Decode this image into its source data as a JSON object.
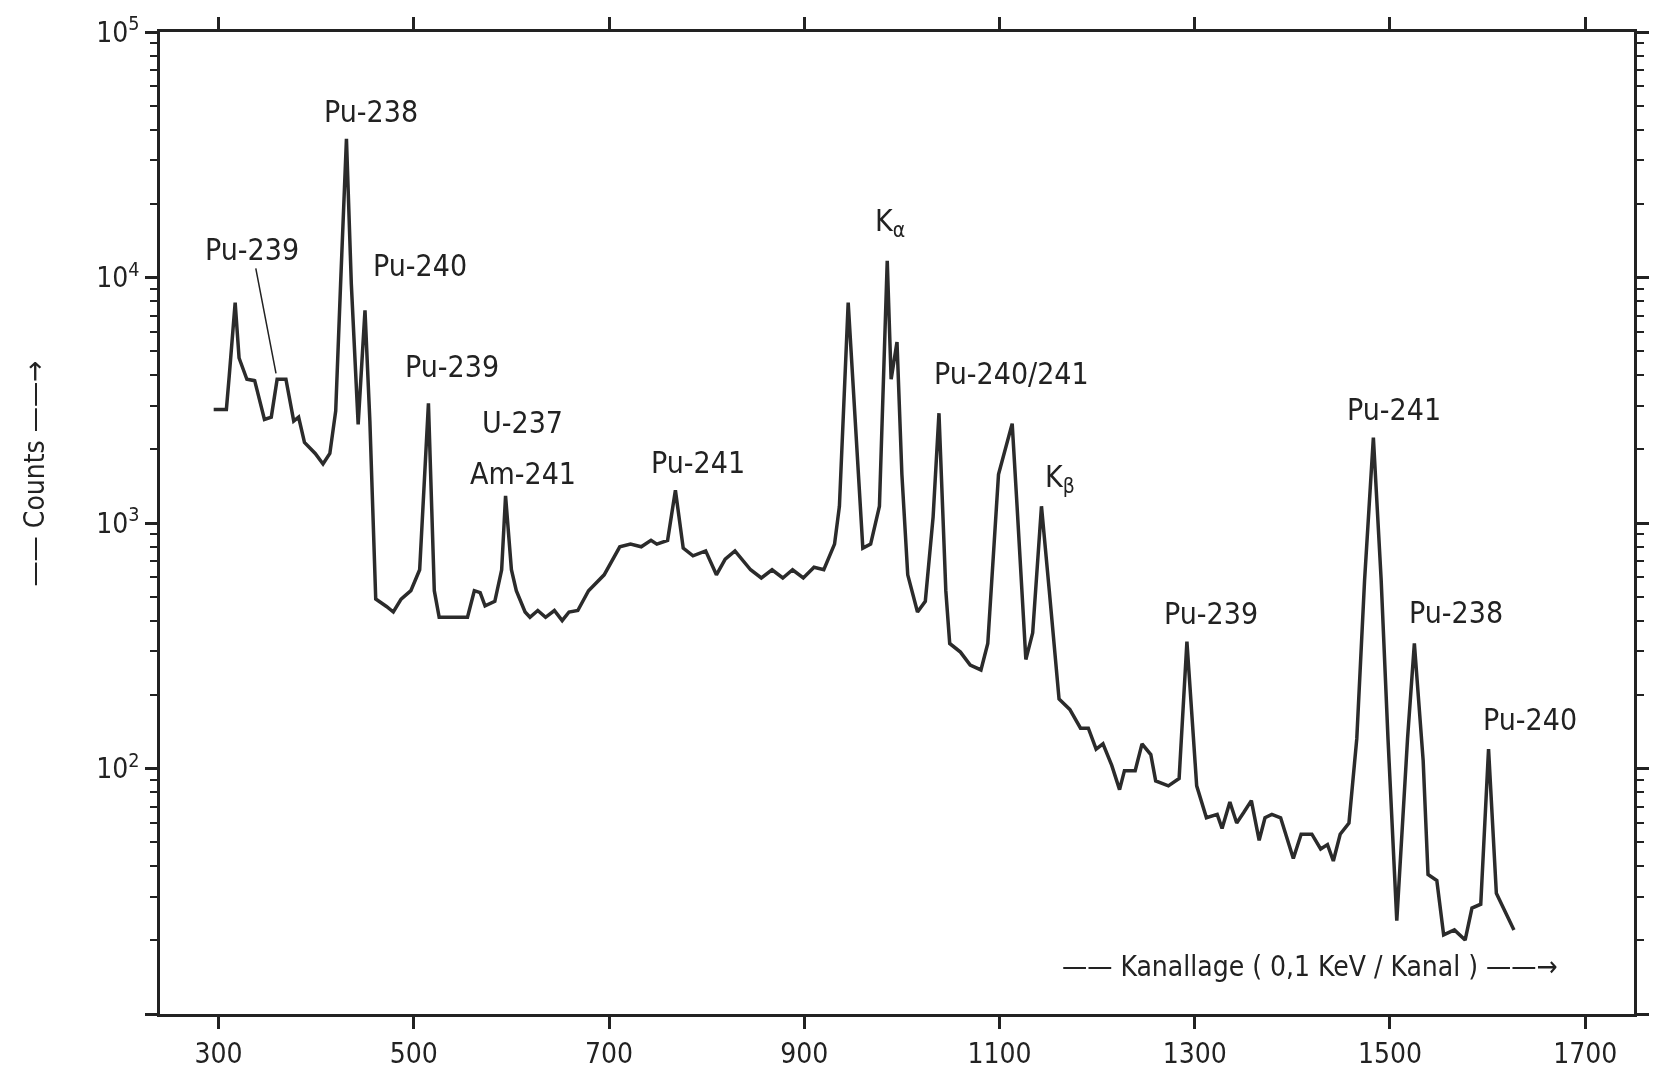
{
  "chart_data": {
    "type": "line",
    "xlabel": "—— Kanallage ( 0,1 KeV / Kanal ) ——→",
    "ylabel": "—— Counts ——→",
    "log": "y",
    "marker": "none",
    "line_style": "solid",
    "xlim": [
      240,
      1750
    ],
    "xticks": [
      300,
      500,
      700,
      900,
      1100,
      1300,
      1500,
      1700
    ],
    "ylim": [
      10,
      100000
    ],
    "yticks": [
      {
        "value": 10,
        "label": null
      },
      {
        "value": 100,
        "label": "10$^{2}$"
      },
      {
        "value": 1000,
        "label": "10$^{3}$"
      },
      {
        "value": 10000,
        "label": "10$^{4}$"
      },
      {
        "value": 100000,
        "label": "10$^{5}$"
      }
    ],
    "series": [
      {
        "color": "#2b2b2b",
        "x": [
          295,
          308,
          311,
          317,
          321,
          329,
          337,
          347,
          354,
          360,
          369,
          377,
          382,
          388,
          399,
          407,
          414,
          420,
          425,
          431,
          436,
          443,
          450,
          455,
          461,
          472,
          479,
          487,
          497,
          506,
          515,
          521,
          526,
          555,
          562,
          568,
          573,
          583,
          590,
          594,
          600,
          605,
          614,
          619,
          627,
          635,
          644,
          652,
          659,
          668,
          679,
          695,
          711,
          722,
          733,
          743,
          749,
          760,
          768,
          776,
          786,
          799,
          810,
          819,
          829,
          845,
          856,
          867,
          878,
          888,
          899,
          910,
          920,
          931,
          936,
          945,
          960,
          968,
          977,
          985,
          989,
          995,
          1000,
          1006,
          1016,
          1024,
          1032,
          1038,
          1045,
          1049,
          1060,
          1070,
          1081,
          1088,
          1099,
          1113,
          1118,
          1127,
          1134,
          1143,
          1151,
          1161,
          1172,
          1183,
          1191,
          1199,
          1206,
          1215,
          1223,
          1228,
          1239,
          1246,
          1255,
          1260,
          1273,
          1284,
          1292,
          1302,
          1312,
          1323,
          1328,
          1336,
          1343,
          1350,
          1358,
          1366,
          1372,
          1379,
          1388,
          1401,
          1409,
          1420,
          1429,
          1436,
          1442,
          1449,
          1458,
          1466,
          1474,
          1483,
          1491,
          1498,
          1507,
          1518,
          1525,
          1534,
          1539,
          1548,
          1555,
          1566,
          1577,
          1584,
          1593,
          1601,
          1609,
          1627
        ],
        "values": [
          2900,
          2900,
          4000,
          7900,
          4700,
          3850,
          3800,
          2640,
          2700,
          3850,
          3850,
          2600,
          2700,
          2130,
          1920,
          1740,
          1920,
          2860,
          9400,
          36700,
          9400,
          2520,
          7350,
          2600,
          490,
          457,
          434,
          490,
          530,
          645,
          3070,
          530,
          413,
          413,
          530,
          520,
          460,
          480,
          645,
          1290,
          645,
          530,
          434,
          413,
          440,
          413,
          440,
          400,
          434,
          440,
          530,
          615,
          800,
          820,
          800,
          850,
          820,
          850,
          1360,
          790,
          735,
          770,
          615,
          713,
          770,
          645,
          597,
          645,
          597,
          645,
          597,
          660,
          645,
          820,
          1170,
          7900,
          790,
          820,
          1170,
          11700,
          3850,
          5460,
          1580,
          615,
          434,
          480,
          1060,
          2800,
          530,
          323,
          298,
          264,
          252,
          323,
          1580,
          2540,
          1170,
          278,
          357,
          1170,
          530,
          192,
          174,
          146,
          146,
          120,
          126,
          103,
          82,
          98,
          98,
          126,
          114,
          89,
          85,
          91,
          329,
          85,
          63,
          65,
          57,
          73,
          60,
          66,
          74,
          51,
          63,
          65,
          63,
          43,
          54,
          54,
          47,
          49,
          42,
          54,
          60,
          132,
          585,
          2230,
          585,
          132,
          24,
          132,
          323,
          108,
          37,
          35,
          21,
          22,
          20,
          27,
          28,
          120,
          31,
          22
        ]
      }
    ],
    "annotations": [
      {
        "text": "Pu-239",
        "x": 360,
        "y": 3850
      },
      {
        "text": "Pu-238",
        "x": 431,
        "y": 36700
      },
      {
        "text": "Pu-240",
        "x": 450,
        "y": 7350
      },
      {
        "text": "Pu-239",
        "x": 515,
        "y": 3070
      },
      {
        "text": "U-237",
        "x": 594,
        "y": 1290
      },
      {
        "text": "Am-241",
        "x": 594,
        "y": 1290
      },
      {
        "text": "Pu-241",
        "x": 768,
        "y": 1360
      },
      {
        "text": "K$_{α}$",
        "x": 985,
        "y": 11700
      },
      {
        "text": "Pu-240/241",
        "x": 1038,
        "y": 2800
      },
      {
        "text": "K$_{β}$",
        "x": 1143,
        "y": 1170
      },
      {
        "text": "Pu-239",
        "x": 1292,
        "y": 329
      },
      {
        "text": "Pu-241",
        "x": 1483,
        "y": 2230
      },
      {
        "text": "Pu-238",
        "x": 1525,
        "y": 323
      },
      {
        "text": "Pu-240",
        "x": 1601,
        "y": 120
      }
    ]
  }
}
